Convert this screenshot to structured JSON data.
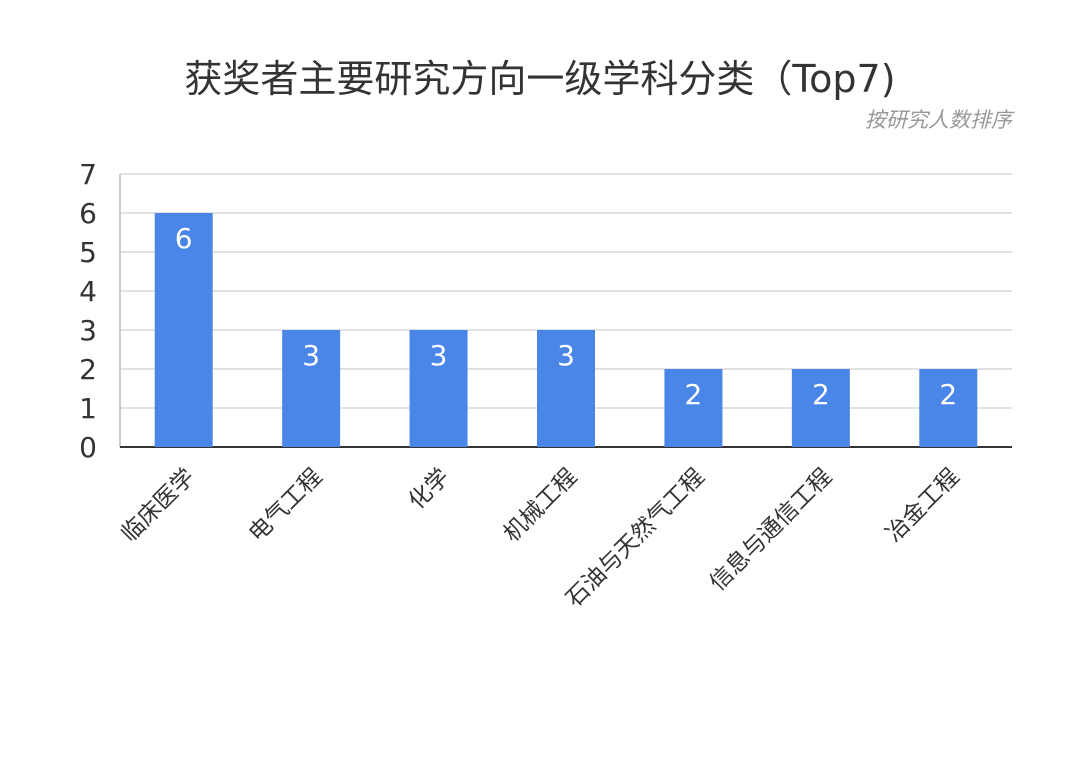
{
  "chart_data": {
    "type": "bar",
    "title": "获奖者主要研究方向一级学科分类（Top7)",
    "subtitle": "按研究人数排序",
    "xlabel": "",
    "ylabel": "",
    "categories": [
      "临床医学",
      "电气工程",
      "化学",
      "机械工程",
      "石油与天然气工程",
      "信息与通信工程",
      "冶金工程"
    ],
    "values": [
      6,
      3,
      3,
      3,
      2,
      2,
      2
    ],
    "ylim": [
      0,
      7
    ],
    "yticks": [
      "0",
      "1",
      "2",
      "3",
      "4",
      "5",
      "6",
      "7"
    ],
    "grid": true,
    "data_labels": true,
    "bar_color": "#4a86e8"
  }
}
